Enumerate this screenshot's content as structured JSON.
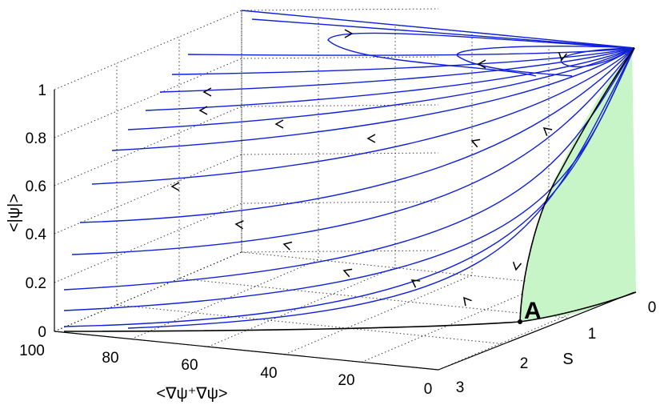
{
  "chart_data": {
    "type": "line",
    "projection": "3d",
    "title": "",
    "xlabel": "<∇ψ⁺∇ψ>",
    "ylabel": "S",
    "zlabel": "<|ψ|>",
    "x_ticks": [
      "100",
      "80",
      "60",
      "40",
      "20",
      "0"
    ],
    "y_ticks": [
      "0",
      "1",
      "2",
      "3"
    ],
    "z_ticks": [
      "0",
      "0.2",
      "0.4",
      "0.6",
      "0.8",
      "1"
    ],
    "xlim": [
      0,
      100
    ],
    "ylim": [
      0,
      3
    ],
    "zlim": [
      0,
      1
    ],
    "grid": true,
    "point_label": "A",
    "trajectory_color": "#1020d8",
    "region_color": "#c8f5c8",
    "annotation_count": 16
  }
}
